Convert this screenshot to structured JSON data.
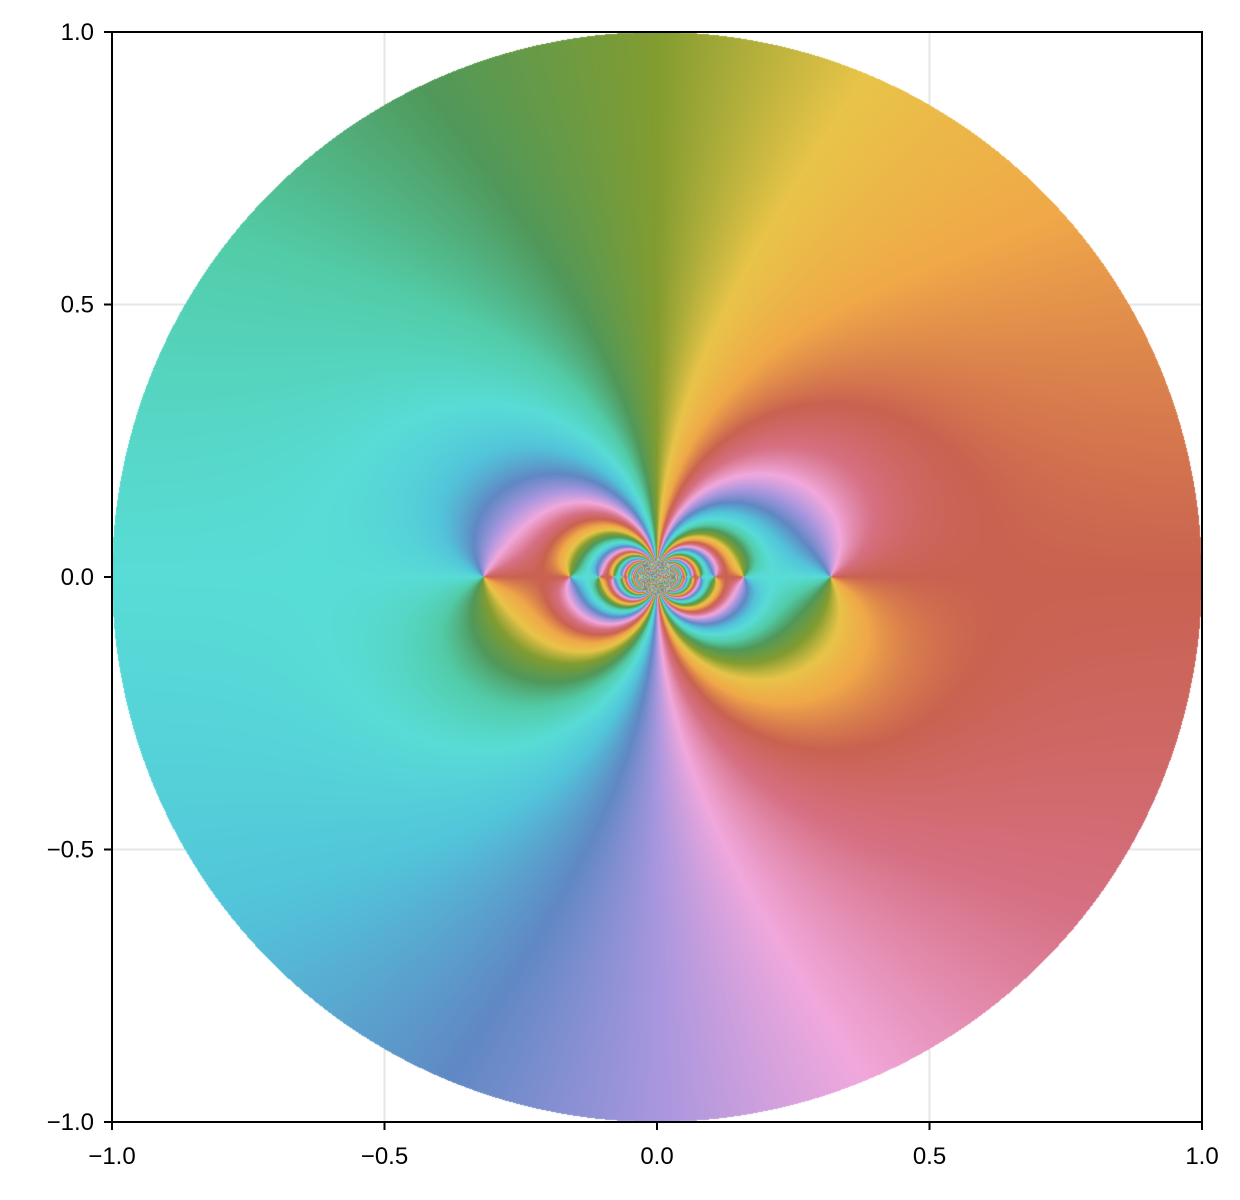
{
  "chart_data": {
    "type": "heatmap",
    "subtype": "domain-coloring",
    "description_function": "complex-valued function on the unit disk, colored by argument (phase) with cyclic hue; essential singularity at origin with zeros/poles accumulating along the real axis",
    "title": "",
    "xlabel": "",
    "ylabel": "",
    "xlim": [
      -1.0,
      1.0
    ],
    "ylim": [
      -1.0,
      1.0
    ],
    "domain_radius": 1.0,
    "grid": true,
    "x_ticks": [
      -1.0,
      -0.5,
      0.0,
      0.5,
      1.0
    ],
    "y_ticks": [
      -1.0,
      -0.5,
      0.0,
      0.5,
      1.0
    ],
    "x_tick_labels": [
      "−1.0",
      "−0.5",
      "0.0",
      "0.5",
      "1.0"
    ],
    "y_tick_labels": [
      "−1.0",
      "−0.5",
      "0.0",
      "0.5",
      "1.0"
    ],
    "real_axis_singular_points": [
      -0.3183,
      -0.1592,
      -0.1061,
      -0.0796,
      0.0796,
      0.1061,
      0.1592,
      0.3183
    ],
    "colors": {
      "grid": "#e6e6e6",
      "axis": "#000000",
      "background": "#ffffff"
    }
  }
}
